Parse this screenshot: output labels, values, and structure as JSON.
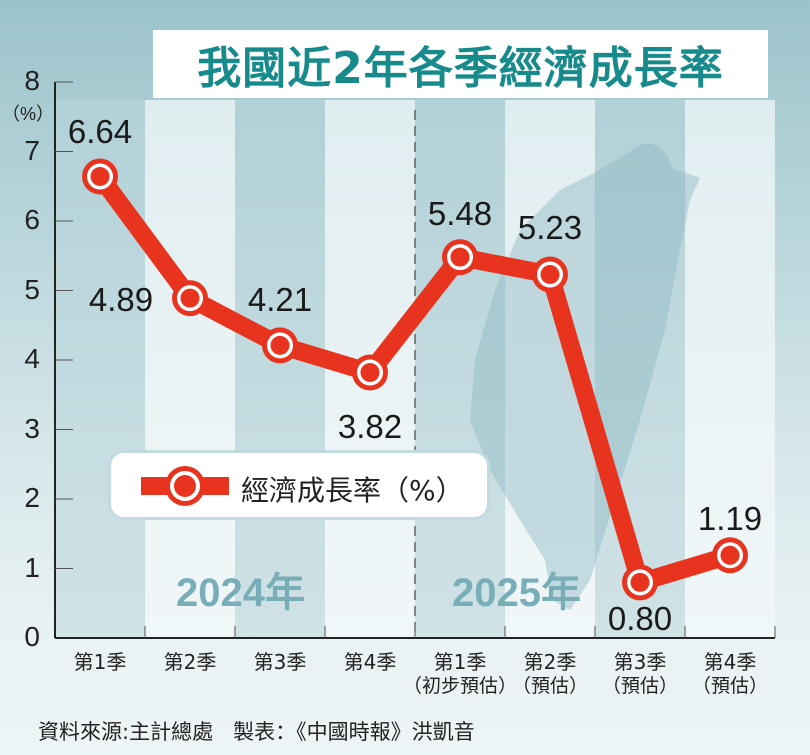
{
  "title": "我國近2年各季經濟成長率",
  "legend": {
    "label": "經濟成長率（%）"
  },
  "year_labels": [
    "2024年",
    "2025年"
  ],
  "footer": {
    "source": "資料來源:主計總處",
    "credit": "製表：《中國時報》洪凱音"
  },
  "y_axis": {
    "unit": "（%）",
    "ticks": [
      "0",
      "1",
      "2",
      "3",
      "4",
      "5",
      "6",
      "7",
      "8"
    ]
  },
  "x_axis": {
    "labels": [
      {
        "main": "第1季",
        "sub": ""
      },
      {
        "main": "第2季",
        "sub": ""
      },
      {
        "main": "第3季",
        "sub": ""
      },
      {
        "main": "第4季",
        "sub": ""
      },
      {
        "main": "第1季",
        "sub": "（初步預估）"
      },
      {
        "main": "第2季",
        "sub": "（預估）"
      },
      {
        "main": "第3季",
        "sub": "（預估）"
      },
      {
        "main": "第4季",
        "sub": "（預估）"
      }
    ]
  },
  "value_labels": [
    "6.64",
    "4.89",
    "4.21",
    "3.82",
    "5.48",
    "5.23",
    "0.80",
    "1.19"
  ],
  "colors": {
    "line": "#e8341f",
    "title": "#178a8c",
    "year": "#79adb8",
    "stripe_dark": "#b9d5db",
    "stripe_light": "#f3f8f9"
  },
  "chart_data": {
    "type": "line",
    "title": "我國近2年各季經濟成長率",
    "categories": [
      "2024 第1季",
      "2024 第2季",
      "2024 第3季",
      "2024 第4季",
      "2025 第1季(初步預估)",
      "2025 第2季(預估)",
      "2025 第3季(預估)",
      "2025 第4季(預估)"
    ],
    "series": [
      {
        "name": "經濟成長率（%）",
        "values": [
          6.64,
          4.89,
          4.21,
          3.82,
          5.48,
          5.23,
          0.8,
          1.19
        ]
      }
    ],
    "xlabel": "",
    "ylabel": "（%）",
    "ylim": [
      0,
      8
    ],
    "grid": false,
    "legend_position": "center-left",
    "annotations": [
      "2024年",
      "2025年"
    ],
    "source": "資料來源:主計總處"
  }
}
